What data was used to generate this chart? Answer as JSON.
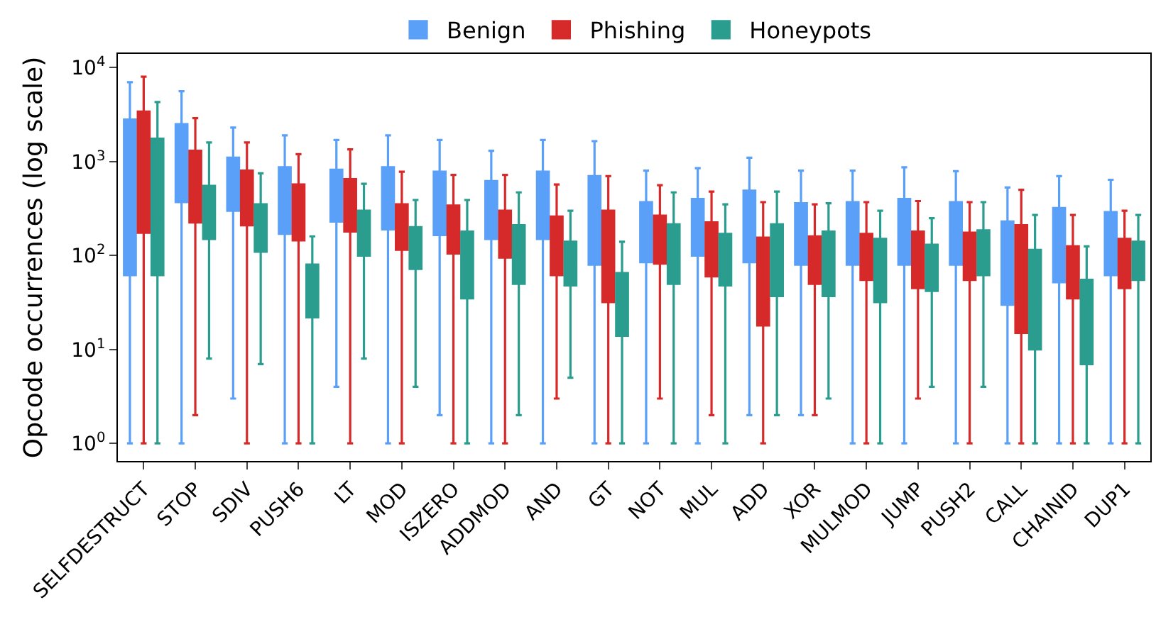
{
  "chart_data": {
    "type": "box",
    "ylabel": "Opcode occurrences (log scale)",
    "log": true,
    "legend": "top",
    "categories": [
      "SELFDESTRUCT",
      "STOP",
      "SDIV",
      "PUSH6",
      "LT",
      "MOD",
      "ISZERO",
      "ADDMOD",
      "AND",
      "GT",
      "NOT",
      "MUL",
      "ADD",
      "XOR",
      "MULMOD",
      "JUMP",
      "PUSH2",
      "CALL",
      "CHAINID",
      "DUP1"
    ],
    "ylim": [
      0.65,
      14000
    ],
    "yticks": [
      {
        "value": 1,
        "label": "10$^{0}$"
      },
      {
        "value": 10,
        "label": "10$^{1}$"
      },
      {
        "value": 100,
        "label": "10$^{2}$"
      },
      {
        "value": 1000,
        "label": "10$^{3}$"
      },
      {
        "value": 10000,
        "label": "10$^{4}$"
      }
    ],
    "series": [
      {
        "name": "Benign",
        "color": "#5aa0f8",
        "boxes": [
          {
            "low": 1,
            "q1": 62,
            "median": 350,
            "q3": 2800,
            "high": 7000
          },
          {
            "low": 1,
            "q1": 370,
            "median": 1050,
            "q3": 2500,
            "high": 5600
          },
          {
            "low": 3,
            "q1": 300,
            "median": 550,
            "q3": 1100,
            "high": 2300
          },
          {
            "low": 1,
            "q1": 170,
            "median": 390,
            "q3": 870,
            "high": 1900
          },
          {
            "low": 4,
            "q1": 230,
            "median": 440,
            "q3": 820,
            "high": 1700
          },
          {
            "low": 1,
            "q1": 190,
            "median": 390,
            "q3": 870,
            "high": 1900
          },
          {
            "low": 2,
            "q1": 165,
            "median": 360,
            "q3": 780,
            "high": 1700
          },
          {
            "low": 1,
            "q1": 150,
            "median": 330,
            "q3": 620,
            "high": 1300
          },
          {
            "low": 1,
            "q1": 150,
            "median": 370,
            "q3": 780,
            "high": 1700
          },
          {
            "low": 1,
            "q1": 80,
            "median": 265,
            "q3": 700,
            "high": 1650
          },
          {
            "low": 1,
            "q1": 85,
            "median": 190,
            "q3": 370,
            "high": 800
          },
          {
            "low": 1,
            "q1": 100,
            "median": 210,
            "q3": 400,
            "high": 850
          },
          {
            "low": 2,
            "q1": 85,
            "median": 250,
            "q3": 490,
            "high": 1100
          },
          {
            "low": 2,
            "q1": 80,
            "median": 175,
            "q3": 360,
            "high": 800
          },
          {
            "low": 1,
            "q1": 80,
            "median": 190,
            "q3": 370,
            "high": 800
          },
          {
            "low": 1,
            "q1": 80,
            "median": 190,
            "q3": 400,
            "high": 870
          },
          {
            "low": 1,
            "q1": 80,
            "median": 190,
            "q3": 370,
            "high": 790
          },
          {
            "low": 1,
            "q1": 30,
            "median": 95,
            "q3": 230,
            "high": 530
          },
          {
            "low": 1,
            "q1": 52,
            "median": 130,
            "q3": 320,
            "high": 700
          },
          {
            "low": 1,
            "q1": 62,
            "median": 145,
            "q3": 290,
            "high": 640
          }
        ]
      },
      {
        "name": "Phishing",
        "color": "#d62a2a",
        "boxes": [
          {
            "low": 1,
            "q1": 175,
            "median": 1000,
            "q3": 3400,
            "high": 8000
          },
          {
            "low": 2,
            "q1": 225,
            "median": 600,
            "q3": 1300,
            "high": 2900
          },
          {
            "low": 1,
            "q1": 210,
            "median": 450,
            "q3": 800,
            "high": 1600
          },
          {
            "low": 1,
            "q1": 145,
            "median": 330,
            "q3": 570,
            "high": 1200
          },
          {
            "low": 1,
            "q1": 180,
            "median": 390,
            "q3": 650,
            "high": 1350
          },
          {
            "low": 1,
            "q1": 115,
            "median": 190,
            "q3": 350,
            "high": 780
          },
          {
            "low": 1,
            "q1": 105,
            "median": 170,
            "q3": 340,
            "high": 720
          },
          {
            "low": 1,
            "q1": 95,
            "median": 180,
            "q3": 300,
            "high": 720
          },
          {
            "low": 3,
            "q1": 62,
            "median": 130,
            "q3": 260,
            "high": 570
          },
          {
            "low": 1,
            "q1": 32,
            "median": 120,
            "q3": 300,
            "high": 700
          },
          {
            "low": 3,
            "q1": 82,
            "median": 145,
            "q3": 265,
            "high": 560
          },
          {
            "low": 2,
            "q1": 60,
            "median": 140,
            "q3": 225,
            "high": 480
          },
          {
            "low": 1,
            "q1": 18,
            "median": 55,
            "q3": 155,
            "high": 370
          },
          {
            "low": 2,
            "q1": 50,
            "median": 100,
            "q3": 160,
            "high": 350
          },
          {
            "low": 1,
            "q1": 55,
            "median": 95,
            "q3": 170,
            "high": 370
          },
          {
            "low": 3,
            "q1": 45,
            "median": 100,
            "q3": 180,
            "high": 380
          },
          {
            "low": 1,
            "q1": 55,
            "median": 100,
            "q3": 175,
            "high": 370
          },
          {
            "low": 1,
            "q1": 15,
            "median": 65,
            "q3": 210,
            "high": 500
          },
          {
            "low": 1,
            "q1": 35,
            "median": 70,
            "q3": 125,
            "high": 270
          },
          {
            "low": 1,
            "q1": 45,
            "median": 80,
            "q3": 150,
            "high": 300
          }
        ]
      },
      {
        "name": "Honeypots",
        "color": "#2a9d8f",
        "boxes": [
          {
            "low": 1,
            "q1": 62,
            "median": 230,
            "q3": 1750,
            "high": 4300
          },
          {
            "low": 8,
            "q1": 150,
            "median": 270,
            "q3": 550,
            "high": 1600
          },
          {
            "low": 7,
            "q1": 110,
            "median": 170,
            "q3": 350,
            "high": 750
          },
          {
            "low": 1,
            "q1": 22,
            "median": 35,
            "q3": 80,
            "high": 160
          },
          {
            "low": 8,
            "q1": 100,
            "median": 180,
            "q3": 300,
            "high": 580
          },
          {
            "low": 4,
            "q1": 72,
            "median": 140,
            "q3": 200,
            "high": 390
          },
          {
            "low": 1,
            "q1": 35,
            "median": 75,
            "q3": 180,
            "high": 390
          },
          {
            "low": 2,
            "q1": 50,
            "median": 105,
            "q3": 210,
            "high": 470
          },
          {
            "low": 5,
            "q1": 48,
            "median": 80,
            "q3": 140,
            "high": 300
          },
          {
            "low": 1,
            "q1": 14,
            "median": 21,
            "q3": 65,
            "high": 140
          },
          {
            "low": 1,
            "q1": 50,
            "median": 95,
            "q3": 215,
            "high": 470
          },
          {
            "low": 1,
            "q1": 48,
            "median": 95,
            "q3": 170,
            "high": 350
          },
          {
            "low": 2,
            "q1": 37,
            "median": 130,
            "q3": 215,
            "high": 480
          },
          {
            "low": 3,
            "q1": 37,
            "median": 95,
            "q3": 180,
            "high": 360
          },
          {
            "low": 1,
            "q1": 32,
            "median": 70,
            "q3": 150,
            "high": 300
          },
          {
            "low": 4,
            "q1": 42,
            "median": 70,
            "q3": 130,
            "high": 250
          },
          {
            "low": 4,
            "q1": 62,
            "median": 120,
            "q3": 185,
            "high": 370
          },
          {
            "low": 1,
            "q1": 10,
            "median": 35,
            "q3": 115,
            "high": 270
          },
          {
            "low": 1,
            "q1": 7,
            "median": 20,
            "q3": 55,
            "high": 125
          },
          {
            "low": 1,
            "q1": 55,
            "median": 95,
            "q3": 140,
            "high": 270
          }
        ]
      }
    ]
  }
}
